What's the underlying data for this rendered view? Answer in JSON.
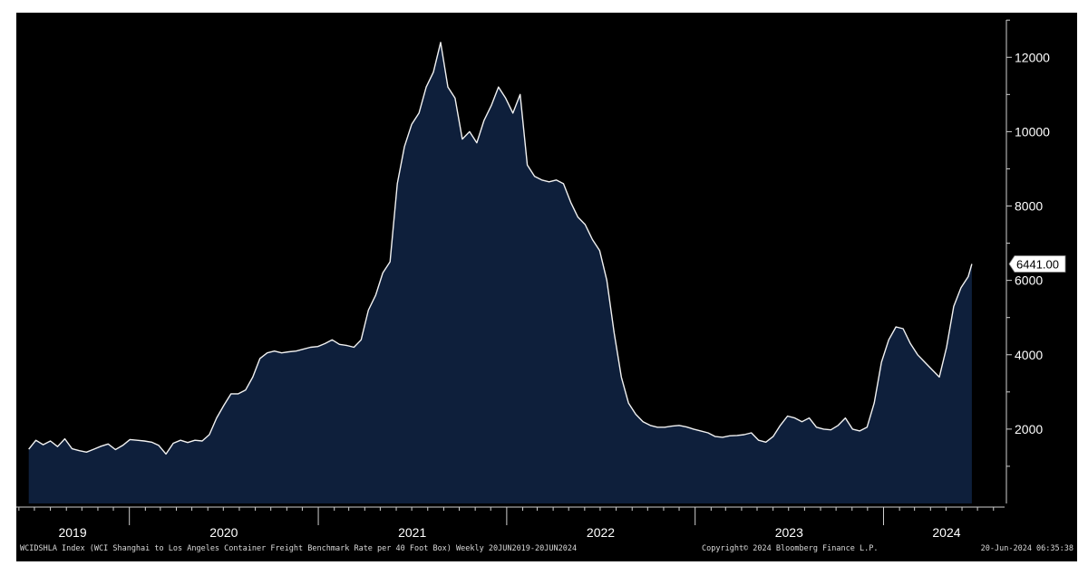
{
  "chart_data": {
    "type": "area",
    "series": [
      {
        "points": [
          [
            "2019-06-20",
            1460
          ],
          [
            "2019-07-04",
            1700
          ],
          [
            "2019-07-18",
            1580
          ],
          [
            "2019-08-01",
            1680
          ],
          [
            "2019-08-15",
            1530
          ],
          [
            "2019-08-29",
            1740
          ],
          [
            "2019-09-12",
            1470
          ],
          [
            "2019-09-26",
            1420
          ],
          [
            "2019-10-10",
            1380
          ],
          [
            "2019-10-24",
            1460
          ],
          [
            "2019-11-07",
            1540
          ],
          [
            "2019-11-21",
            1600
          ],
          [
            "2019-12-05",
            1450
          ],
          [
            "2019-12-19",
            1560
          ],
          [
            "2020-01-02",
            1720
          ],
          [
            "2020-01-16",
            1700
          ],
          [
            "2020-01-30",
            1680
          ],
          [
            "2020-02-13",
            1650
          ],
          [
            "2020-02-27",
            1560
          ],
          [
            "2020-03-12",
            1330
          ],
          [
            "2020-03-26",
            1620
          ],
          [
            "2020-04-09",
            1700
          ],
          [
            "2020-04-23",
            1640
          ],
          [
            "2020-05-07",
            1700
          ],
          [
            "2020-05-21",
            1680
          ],
          [
            "2020-06-04",
            1850
          ],
          [
            "2020-06-18",
            2300
          ],
          [
            "2020-07-02",
            2640
          ],
          [
            "2020-07-16",
            2950
          ],
          [
            "2020-07-30",
            2950
          ],
          [
            "2020-08-13",
            3050
          ],
          [
            "2020-08-27",
            3400
          ],
          [
            "2020-09-10",
            3900
          ],
          [
            "2020-09-24",
            4050
          ],
          [
            "2020-10-08",
            4100
          ],
          [
            "2020-10-22",
            4050
          ],
          [
            "2020-11-05",
            4080
          ],
          [
            "2020-11-19",
            4100
          ],
          [
            "2020-12-03",
            4150
          ],
          [
            "2020-12-17",
            4200
          ],
          [
            "2020-12-31",
            4220
          ],
          [
            "2021-01-14",
            4300
          ],
          [
            "2021-01-28",
            4400
          ],
          [
            "2021-02-11",
            4280
          ],
          [
            "2021-02-25",
            4250
          ],
          [
            "2021-03-11",
            4200
          ],
          [
            "2021-03-25",
            4400
          ],
          [
            "2021-04-08",
            5200
          ],
          [
            "2021-04-22",
            5600
          ],
          [
            "2021-05-06",
            6200
          ],
          [
            "2021-05-20",
            6500
          ],
          [
            "2021-06-03",
            8600
          ],
          [
            "2021-06-17",
            9600
          ],
          [
            "2021-07-01",
            10200
          ],
          [
            "2021-07-15",
            10500
          ],
          [
            "2021-07-29",
            11200
          ],
          [
            "2021-08-12",
            11600
          ],
          [
            "2021-08-26",
            12400
          ],
          [
            "2021-09-09",
            11200
          ],
          [
            "2021-09-23",
            10900
          ],
          [
            "2021-10-07",
            9800
          ],
          [
            "2021-10-21",
            10000
          ],
          [
            "2021-11-04",
            9700
          ],
          [
            "2021-11-18",
            10300
          ],
          [
            "2021-12-02",
            10700
          ],
          [
            "2021-12-16",
            11200
          ],
          [
            "2021-12-30",
            10900
          ],
          [
            "2022-01-13",
            10500
          ],
          [
            "2022-01-27",
            11000
          ],
          [
            "2022-02-10",
            9100
          ],
          [
            "2022-02-24",
            8800
          ],
          [
            "2022-03-10",
            8700
          ],
          [
            "2022-03-24",
            8650
          ],
          [
            "2022-04-07",
            8700
          ],
          [
            "2022-04-21",
            8600
          ],
          [
            "2022-05-05",
            8100
          ],
          [
            "2022-05-19",
            7700
          ],
          [
            "2022-06-02",
            7500
          ],
          [
            "2022-06-16",
            7100
          ],
          [
            "2022-06-30",
            6800
          ],
          [
            "2022-07-14",
            6000
          ],
          [
            "2022-07-28",
            4600
          ],
          [
            "2022-08-11",
            3400
          ],
          [
            "2022-08-25",
            2700
          ],
          [
            "2022-09-08",
            2400
          ],
          [
            "2022-09-22",
            2200
          ],
          [
            "2022-10-06",
            2100
          ],
          [
            "2022-10-20",
            2050
          ],
          [
            "2022-11-03",
            2050
          ],
          [
            "2022-11-17",
            2080
          ],
          [
            "2022-12-01",
            2100
          ],
          [
            "2022-12-15",
            2060
          ],
          [
            "2022-12-29",
            2000
          ],
          [
            "2023-01-12",
            1950
          ],
          [
            "2023-01-26",
            1900
          ],
          [
            "2023-02-09",
            1800
          ],
          [
            "2023-02-23",
            1780
          ],
          [
            "2023-03-09",
            1820
          ],
          [
            "2023-03-23",
            1830
          ],
          [
            "2023-04-06",
            1850
          ],
          [
            "2023-04-20",
            1900
          ],
          [
            "2023-05-04",
            1700
          ],
          [
            "2023-05-18",
            1650
          ],
          [
            "2023-06-01",
            1800
          ],
          [
            "2023-06-15",
            2100
          ],
          [
            "2023-06-29",
            2350
          ],
          [
            "2023-07-13",
            2300
          ],
          [
            "2023-07-27",
            2200
          ],
          [
            "2023-08-10",
            2300
          ],
          [
            "2023-08-24",
            2050
          ],
          [
            "2023-09-07",
            2000
          ],
          [
            "2023-09-21",
            1980
          ],
          [
            "2023-10-05",
            2100
          ],
          [
            "2023-10-19",
            2300
          ],
          [
            "2023-11-02",
            2000
          ],
          [
            "2023-11-16",
            1950
          ],
          [
            "2023-11-30",
            2050
          ],
          [
            "2023-12-14",
            2700
          ],
          [
            "2023-12-28",
            3800
          ],
          [
            "2024-01-11",
            4400
          ],
          [
            "2024-01-25",
            4750
          ],
          [
            "2024-02-08",
            4700
          ],
          [
            "2024-02-22",
            4300
          ],
          [
            "2024-03-07",
            4000
          ],
          [
            "2024-03-21",
            3800
          ],
          [
            "2024-04-04",
            3600
          ],
          [
            "2024-04-18",
            3400
          ],
          [
            "2024-05-02",
            4200
          ],
          [
            "2024-05-16",
            5300
          ],
          [
            "2024-05-30",
            5800
          ],
          [
            "2024-06-13",
            6100
          ],
          [
            "2024-06-20",
            6441
          ]
        ]
      }
    ],
    "ylim": [
      0,
      13200
    ],
    "xlim": [
      "2019-05-27",
      "2024-08-26"
    ],
    "yticks": [
      "2000",
      "4000",
      "6000",
      "8000",
      "10000",
      "12000"
    ],
    "xtick_labels": [
      "2019",
      "2020",
      "2021",
      "2022",
      "2023",
      "2024"
    ],
    "last_value_label": "6441.00",
    "footer_left": "WCIDSHLA Index (WCI Shanghai to Los Angeles Container Freight Benchmark Rate per 40 Foot Box) Weekly 20JUN2019-20JUN2024",
    "footer_middle": "Copyright© 2024 Bloomberg Finance L.P.",
    "footer_right": "20-Jun-2024 06:35:38",
    "grid": false,
    "colors": {
      "background": "#000000",
      "area_fill": "#0e1f3b",
      "line": "#f2f2f2",
      "text": "#ffffff"
    }
  }
}
